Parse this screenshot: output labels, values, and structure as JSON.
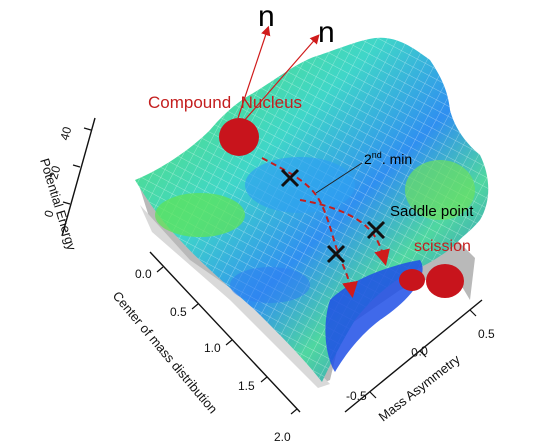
{
  "annotations": {
    "neutron_1": "n",
    "neutron_2": "n",
    "compound_nucleus": "Compound  Nucleus",
    "second_min_prefix": "2",
    "second_min_sup": "nd",
    "second_min_suffix": ". min",
    "saddle_point": "Saddle point",
    "scission": "scission"
  },
  "axes": {
    "z_label": "Potential Energy",
    "y_label": "Center of mass distribution",
    "x_label": "Mass Asymmetry",
    "z_ticks": [
      "40",
      "20",
      "0"
    ],
    "y_ticks": [
      "0.0",
      "0.5",
      "1.0",
      "1.5",
      "2.0"
    ],
    "x_ticks": [
      "0.5",
      "0.0",
      "-0.5"
    ]
  },
  "colors": {
    "annotation_red": "#c41e1e",
    "surface_green": "#5ee35a",
    "surface_cyan": "#3fd6c8",
    "surface_blue": "#1e4fe6",
    "surface_base_gray": "#b9b9b9"
  }
}
